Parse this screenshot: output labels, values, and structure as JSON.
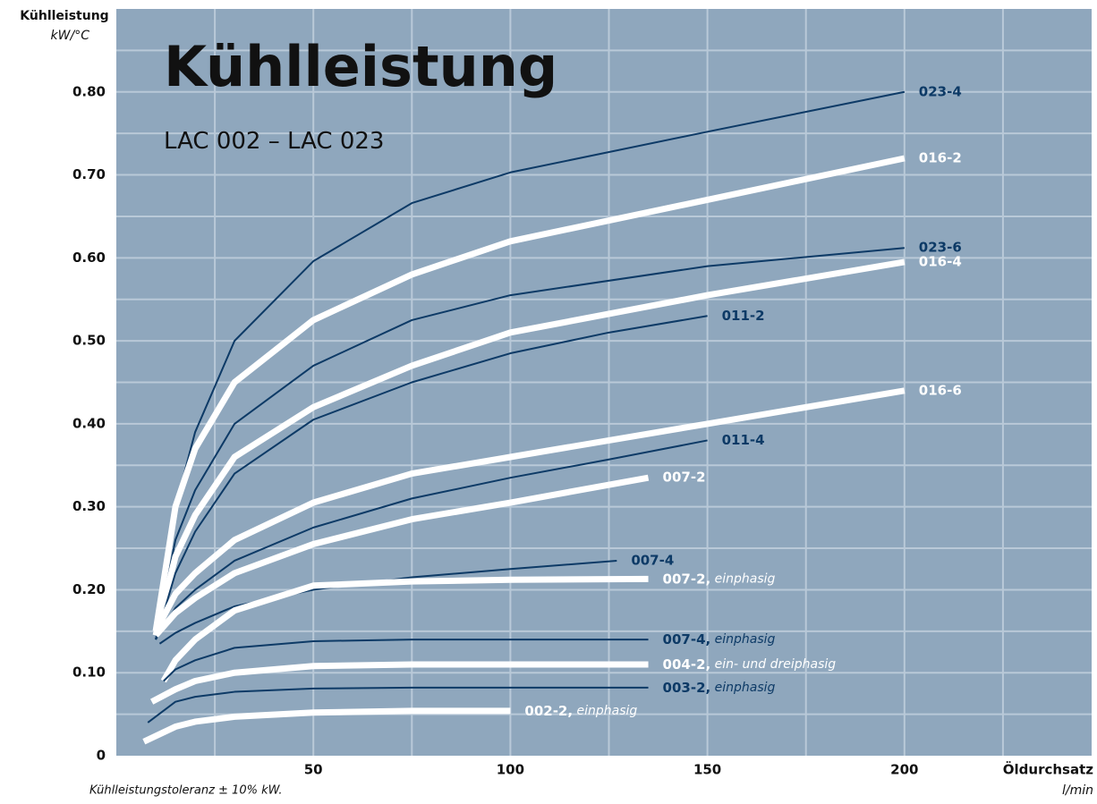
{
  "chart_data": {
    "type": "line",
    "title": "Kühlleistung",
    "subtitle": "LAC 002 – LAC 023",
    "y_label": "Kühlleistung",
    "y_unit": "kW/°C",
    "x_label": "Öldurchsatz",
    "x_unit": "l/min",
    "footnote": "Kühlleistungstoleranz ± 10% kW.",
    "xlim": [
      0,
      247.5
    ],
    "ylim": [
      0,
      0.9
    ],
    "xticks": [
      50,
      100,
      150,
      200
    ],
    "yticks": [
      0,
      {
        "value": 0.1,
        "label": "0.10"
      },
      {
        "value": 0.2,
        "label": "0.20"
      },
      {
        "value": 0.3,
        "label": "0.30"
      },
      {
        "value": 0.4,
        "label": "0.40"
      },
      {
        "value": 0.5,
        "label": "0.50"
      },
      {
        "value": 0.6,
        "label": "0.60"
      },
      {
        "value": 0.7,
        "label": "0.70"
      },
      {
        "value": 0.8,
        "label": "0.80"
      }
    ],
    "xgrid": [
      25,
      50,
      75,
      100,
      125,
      150,
      175,
      200,
      225
    ],
    "ygrid": [
      0.05,
      0.1,
      0.15,
      0.2,
      0.25,
      0.3,
      0.35,
      0.4,
      0.45,
      0.5,
      0.55,
      0.6,
      0.65,
      0.7,
      0.75,
      0.8,
      0.85
    ],
    "grid": true,
    "series": [
      {
        "name": "023-4",
        "color": "#0d3a66",
        "x": [
          10,
          15,
          20,
          30,
          50,
          75,
          100,
          150,
          200
        ],
        "values": [
          0.15,
          0.3,
          0.39,
          0.5,
          0.596,
          0.666,
          0.703,
          0.752,
          0.8
        ]
      },
      {
        "name": "016-2",
        "color": "#ffffff",
        "x": [
          10,
          15,
          20,
          30,
          50,
          75,
          100,
          150,
          200
        ],
        "values": [
          0.15,
          0.3,
          0.37,
          0.45,
          0.525,
          0.58,
          0.62,
          0.67,
          0.72
        ]
      },
      {
        "name": "023-6",
        "color": "#0d3a66",
        "x": [
          10,
          15,
          20,
          30,
          50,
          75,
          100,
          150,
          200
        ],
        "values": [
          0.14,
          0.26,
          0.32,
          0.4,
          0.47,
          0.525,
          0.555,
          0.59,
          0.612
        ]
      },
      {
        "name": "016-4",
        "color": "#ffffff",
        "x": [
          10,
          15,
          20,
          30,
          50,
          75,
          100,
          150,
          200
        ],
        "values": [
          0.145,
          0.24,
          0.29,
          0.36,
          0.42,
          0.47,
          0.51,
          0.555,
          0.595
        ]
      },
      {
        "name": "011-2",
        "color": "#0d3a66",
        "x": [
          10,
          15,
          20,
          30,
          50,
          75,
          100,
          125,
          150
        ],
        "values": [
          0.14,
          0.22,
          0.27,
          0.34,
          0.405,
          0.45,
          0.485,
          0.51,
          0.53
        ]
      },
      {
        "name": "016-6",
        "color": "#ffffff",
        "x": [
          10,
          15,
          20,
          30,
          50,
          75,
          100,
          150,
          200
        ],
        "values": [
          0.15,
          0.195,
          0.22,
          0.26,
          0.305,
          0.34,
          0.36,
          0.4,
          0.44
        ]
      },
      {
        "name": "011-4",
        "color": "#0d3a66",
        "x": [
          10,
          15,
          20,
          30,
          50,
          75,
          100,
          125,
          150
        ],
        "values": [
          0.14,
          0.178,
          0.2,
          0.235,
          0.275,
          0.31,
          0.335,
          0.357,
          0.38
        ]
      },
      {
        "name": "007-2",
        "color": "#ffffff",
        "x": [
          10,
          15,
          20,
          30,
          50,
          75,
          100,
          135
        ],
        "values": [
          0.145,
          0.172,
          0.19,
          0.22,
          0.255,
          0.285,
          0.305,
          0.335
        ]
      },
      {
        "name": "007-4",
        "color": "#0d3a66",
        "x": [
          11,
          15,
          20,
          30,
          50,
          75,
          100,
          127
        ],
        "values": [
          0.135,
          0.148,
          0.16,
          0.18,
          0.2,
          0.215,
          0.225,
          0.235
        ]
      },
      {
        "name": "007-2, einphasig",
        "color": "#ffffff",
        "x": [
          12,
          15,
          20,
          30,
          50,
          75,
          100,
          135
        ],
        "values": [
          0.09,
          0.115,
          0.14,
          0.175,
          0.205,
          0.21,
          0.212,
          0.213
        ]
      },
      {
        "name": "007-4, einphasig",
        "color": "#0d3a66",
        "x": [
          12,
          15,
          20,
          30,
          50,
          75,
          100,
          135
        ],
        "values": [
          0.09,
          0.104,
          0.115,
          0.13,
          0.138,
          0.14,
          0.14,
          0.14
        ]
      },
      {
        "name": "004-2, ein- und dreiphasig",
        "color": "#ffffff",
        "x": [
          9,
          15,
          20,
          30,
          50,
          75,
          135
        ],
        "values": [
          0.065,
          0.08,
          0.09,
          0.1,
          0.108,
          0.11,
          0.11
        ]
      },
      {
        "name": "003-2, einphasig",
        "color": "#0d3a66",
        "x": [
          8,
          15,
          20,
          30,
          50,
          75,
          135
        ],
        "values": [
          0.04,
          0.065,
          0.071,
          0.077,
          0.081,
          0.082,
          0.082
        ]
      },
      {
        "name": "002-2, einphasig",
        "color": "#ffffff",
        "x": [
          7,
          15,
          20,
          30,
          50,
          75,
          100
        ],
        "values": [
          0.017,
          0.035,
          0.041,
          0.047,
          0.052,
          0.054,
          0.054
        ]
      }
    ]
  }
}
